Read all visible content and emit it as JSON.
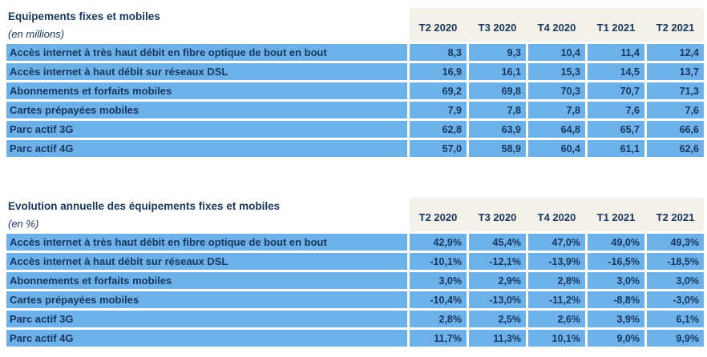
{
  "colors": {
    "row_blue": "#6CB1E9",
    "header_beige": "#F3F1EA",
    "text_navy": "#17375E",
    "separator_white": "#FFFFFF"
  },
  "chart_data": [
    {
      "type": "table",
      "title": "Equipements fixes et mobiles",
      "subtitle": "(en millions)",
      "columns": [
        "T2 2020",
        "T3 2020",
        "T4 2020",
        "T1 2021",
        "T2 2021"
      ],
      "rows": [
        {
          "label": "Accès internet à très haut débit en fibre optique de bout en bout",
          "values": [
            "8,3",
            "9,3",
            "10,4",
            "11,4",
            "12,4"
          ]
        },
        {
          "label": "Accès internet à haut débit sur réseaux DSL",
          "values": [
            "16,9",
            "16,1",
            "15,3",
            "14,5",
            "13,7"
          ]
        },
        {
          "label": "Abonnements et forfaits mobiles",
          "values": [
            "69,2",
            "69,8",
            "70,3",
            "70,7",
            "71,3"
          ]
        },
        {
          "label": "Cartes prépayées mobiles",
          "values": [
            "7,9",
            "7,8",
            "7,8",
            "7,6",
            "7,6"
          ]
        },
        {
          "label": "Parc actif 3G",
          "values": [
            "62,8",
            "63,9",
            "64,8",
            "65,7",
            "66,6"
          ]
        },
        {
          "label": "Parc actif 4G",
          "values": [
            "57,0",
            "58,9",
            "60,4",
            "61,1",
            "62,6"
          ]
        }
      ]
    },
    {
      "type": "table",
      "title": "Evolution annuelle des équipements fixes et mobiles",
      "subtitle": "(en %)",
      "columns": [
        "T2 2020",
        "T3 2020",
        "T4 2020",
        "T1 2021",
        "T2 2021"
      ],
      "rows": [
        {
          "label": "Accès internet à très haut débit en fibre optique de bout en bout",
          "values": [
            "42,9%",
            "45,4%",
            "47,0%",
            "49,0%",
            "49,3%"
          ]
        },
        {
          "label": "Accès internet à haut débit sur réseaux DSL",
          "values": [
            "-10,1%",
            "-12,1%",
            "-13,9%",
            "-16,5%",
            "-18,5%"
          ]
        },
        {
          "label": "Abonnements et forfaits mobiles",
          "values": [
            "3,0%",
            "2,9%",
            "2,8%",
            "3,0%",
            "3,0%"
          ]
        },
        {
          "label": "Cartes prépayées mobiles",
          "values": [
            "-10,4%",
            "-13,0%",
            "-11,2%",
            "-8,8%",
            "-3,0%"
          ]
        },
        {
          "label": "Parc actif 3G",
          "values": [
            "2,8%",
            "2,5%",
            "2,6%",
            "3,9%",
            "6,1%"
          ]
        },
        {
          "label": "Parc actif 4G",
          "values": [
            "11,7%",
            "11,3%",
            "10,1%",
            "9,0%",
            "9,9%"
          ]
        }
      ]
    }
  ]
}
